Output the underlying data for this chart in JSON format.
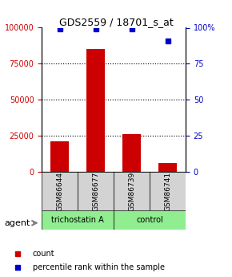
{
  "title": "GDS2559 / 18701_s_at",
  "samples": [
    "GSM86644",
    "GSM86677",
    "GSM86739",
    "GSM86741"
  ],
  "counts": [
    21000,
    85000,
    26000,
    6000
  ],
  "percentiles": [
    99,
    99,
    99,
    91
  ],
  "groups": [
    "trichostatin A",
    "trichostatin A",
    "control",
    "control"
  ],
  "group_colors": {
    "trichostatin A": "#90EE90",
    "control": "#90EE90"
  },
  "bar_color": "#CC0000",
  "dot_color": "#0000CC",
  "ylim_left": [
    0,
    100000
  ],
  "ylim_right": [
    0,
    100
  ],
  "yticks_left": [
    0,
    25000,
    50000,
    75000,
    100000
  ],
  "yticks_right": [
    0,
    25,
    50,
    75,
    100
  ],
  "yticklabels_left": [
    "0",
    "25000",
    "50000",
    "75000",
    "100000"
  ],
  "yticklabels_right": [
    "0",
    "25",
    "50",
    "75",
    "100%"
  ],
  "legend_count_label": "count",
  "legend_pct_label": "percentile rank within the sample",
  "agent_label": "agent",
  "group_label_tsa": "trichostatin A",
  "group_label_ctrl": "control",
  "bg_color": "#ffffff"
}
